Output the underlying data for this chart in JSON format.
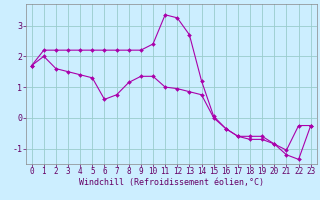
{
  "xlabel": "Windchill (Refroidissement éolien,°C)",
  "ylabel": "",
  "background_color": "#cceeff",
  "grid_color": "#99cccc",
  "line_color": "#aa00aa",
  "spine_color": "#888888",
  "tick_color": "#660066",
  "xlim_min": -0.5,
  "xlim_max": 23.5,
  "ylim_min": -1.5,
  "ylim_max": 3.7,
  "x_ticks": [
    0,
    1,
    2,
    3,
    4,
    5,
    6,
    7,
    8,
    9,
    10,
    11,
    12,
    13,
    14,
    15,
    16,
    17,
    18,
    19,
    20,
    21,
    22,
    23
  ],
  "y_ticks": [
    -1,
    0,
    1,
    2,
    3
  ],
  "line1_x": [
    0,
    1,
    2,
    3,
    4,
    5,
    6,
    7,
    8,
    9,
    10,
    11,
    12,
    13,
    14,
    15,
    16,
    17,
    18,
    19,
    20,
    21,
    22,
    23
  ],
  "line1_y": [
    1.7,
    2.2,
    2.2,
    2.2,
    2.2,
    2.2,
    2.2,
    2.2,
    2.2,
    2.2,
    2.4,
    3.35,
    3.25,
    2.7,
    1.2,
    0.05,
    -0.35,
    -0.6,
    -0.6,
    -0.6,
    -0.85,
    -1.05,
    -0.25,
    -0.25
  ],
  "line2_x": [
    0,
    1,
    2,
    3,
    4,
    5,
    6,
    7,
    8,
    9,
    10,
    11,
    12,
    13,
    14,
    15,
    16,
    17,
    18,
    19,
    20,
    21,
    22,
    23
  ],
  "line2_y": [
    1.7,
    2.0,
    1.6,
    1.5,
    1.4,
    1.3,
    0.6,
    0.75,
    1.15,
    1.35,
    1.35,
    1.0,
    0.95,
    0.85,
    0.75,
    0.0,
    -0.35,
    -0.6,
    -0.7,
    -0.7,
    -0.85,
    -1.2,
    -1.35,
    -0.25
  ],
  "xlabel_fontsize": 6,
  "tick_fontsize": 5.5,
  "ytick_fontsize": 6
}
